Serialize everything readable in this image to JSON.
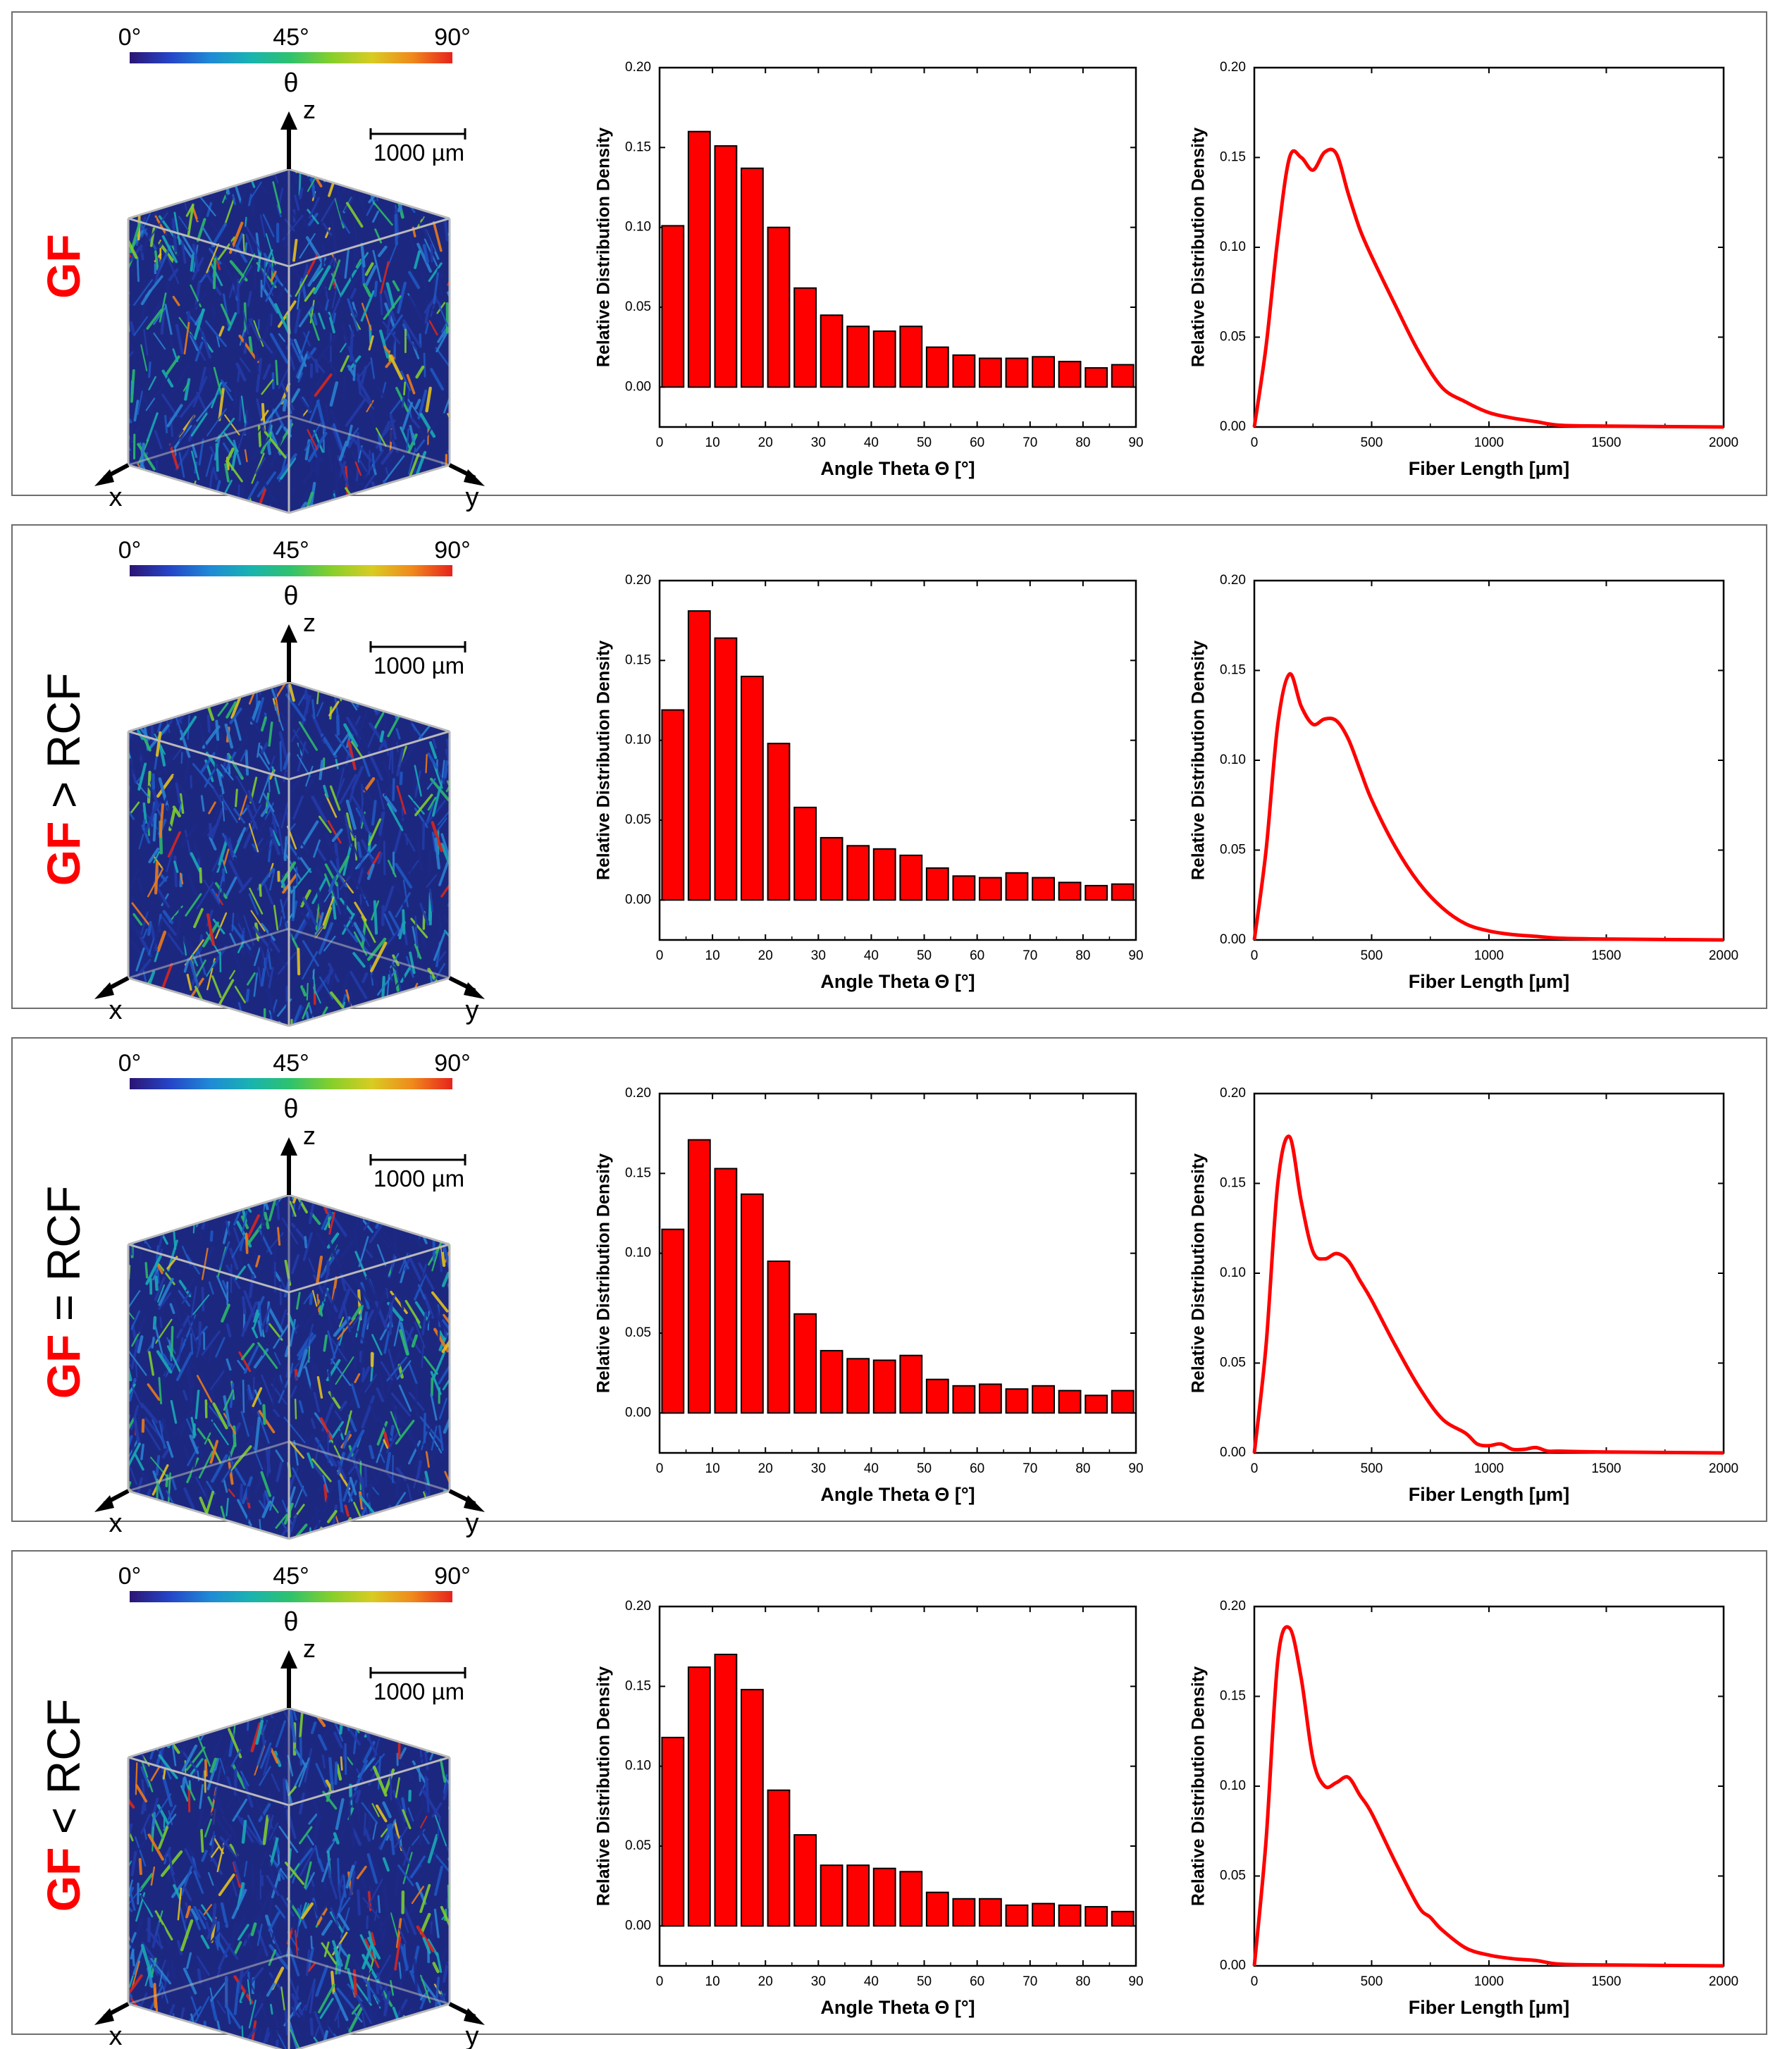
{
  "legend": {
    "tick_start": "0°",
    "tick_mid": "45°",
    "tick_end": "90°",
    "symbol": "θ",
    "colors": [
      "#2b1573",
      "#2545c8",
      "#1f8ad6",
      "#19b3b0",
      "#2fc26c",
      "#86cf2b",
      "#d8cc22",
      "#f08a1c",
      "#e6231c"
    ]
  },
  "volume": {
    "scale_bar_label": "1000 µm",
    "axis_x": "x",
    "axis_y": "y",
    "axis_z": "z",
    "fiber_colors": [
      "#1c2a88",
      "#223aa8",
      "#1f56c2",
      "#2a7fd0",
      "#19a9b5",
      "#2cb86a",
      "#7dcc2e",
      "#e2c01f",
      "#ec7a1a",
      "#d8261e"
    ]
  },
  "panels": [
    {
      "label_part1": "GF",
      "label_part2": "",
      "chart_data": [
        {
          "type": "bar",
          "title": "",
          "xlabel": "Angle Theta Θ [°]",
          "ylabel": "Relative Distribution Density",
          "xlim": [
            0,
            90
          ],
          "ylim": [
            -0.025,
            0.2
          ],
          "xticks": [
            "0",
            "10",
            "20",
            "30",
            "40",
            "50",
            "60",
            "70",
            "80",
            "90"
          ],
          "yticks": [
            "0.00",
            "0.05",
            "0.10",
            "0.15",
            "0.20"
          ],
          "bar_centers": [
            2.5,
            7.5,
            12.5,
            17.5,
            22.5,
            27.5,
            32.5,
            37.5,
            42.5,
            47.5,
            52.5,
            57.5,
            62.5,
            67.5,
            72.5,
            77.5,
            82.5,
            87.5
          ],
          "values": [
            0.101,
            0.16,
            0.151,
            0.137,
            0.1,
            0.062,
            0.045,
            0.038,
            0.035,
            0.038,
            0.025,
            0.02,
            0.018,
            0.018,
            0.019,
            0.016,
            0.012,
            0.014
          ]
        },
        {
          "type": "line",
          "title": "",
          "xlabel": "Fiber Length [µm]",
          "ylabel": "Relative Distribution Density",
          "xlim": [
            0,
            2000
          ],
          "ylim": [
            0,
            0.2
          ],
          "xticks": [
            "0",
            "500",
            "1000",
            "1500",
            "2000"
          ],
          "yticks": [
            "0.00",
            "0.05",
            "0.10",
            "0.15",
            "0.20"
          ],
          "x": [
            0,
            50,
            100,
            150,
            200,
            250,
            300,
            350,
            400,
            450,
            500,
            600,
            700,
            800,
            900,
            1000,
            1100,
            1200,
            1300,
            1500,
            2000
          ],
          "y": [
            0,
            0.045,
            0.105,
            0.15,
            0.15,
            0.143,
            0.153,
            0.152,
            0.13,
            0.11,
            0.095,
            0.068,
            0.042,
            0.022,
            0.014,
            0.008,
            0.005,
            0.003,
            0.001,
            0.0005,
            0
          ]
        }
      ]
    },
    {
      "label_part1": "GF",
      "label_part2": " > RCF",
      "chart_data": [
        {
          "type": "bar",
          "title": "",
          "xlabel": "Angle Theta Θ [°]",
          "ylabel": "Relative Distribution Density",
          "xlim": [
            0,
            90
          ],
          "ylim": [
            -0.025,
            0.2
          ],
          "xticks": [
            "0",
            "10",
            "20",
            "30",
            "40",
            "50",
            "60",
            "70",
            "80",
            "90"
          ],
          "yticks": [
            "0.00",
            "0.05",
            "0.10",
            "0.15",
            "0.20"
          ],
          "bar_centers": [
            2.5,
            7.5,
            12.5,
            17.5,
            22.5,
            27.5,
            32.5,
            37.5,
            42.5,
            47.5,
            52.5,
            57.5,
            62.5,
            67.5,
            72.5,
            77.5,
            82.5,
            87.5
          ],
          "values": [
            0.119,
            0.181,
            0.164,
            0.14,
            0.098,
            0.058,
            0.039,
            0.034,
            0.032,
            0.028,
            0.02,
            0.015,
            0.014,
            0.017,
            0.014,
            0.011,
            0.009,
            0.01
          ]
        },
        {
          "type": "line",
          "title": "",
          "xlabel": "Fiber Length [µm]",
          "ylabel": "Relative Distribution Density",
          "xlim": [
            0,
            2000
          ],
          "ylim": [
            0,
            0.2
          ],
          "xticks": [
            "0",
            "500",
            "1000",
            "1500",
            "2000"
          ],
          "yticks": [
            "0.00",
            "0.05",
            "0.10",
            "0.15",
            "0.20"
          ],
          "x": [
            0,
            50,
            100,
            150,
            200,
            250,
            300,
            350,
            400,
            450,
            500,
            600,
            700,
            800,
            900,
            1000,
            1100,
            1200,
            1300,
            1500,
            2000
          ],
          "y": [
            0,
            0.05,
            0.12,
            0.148,
            0.13,
            0.12,
            0.123,
            0.122,
            0.112,
            0.095,
            0.078,
            0.052,
            0.032,
            0.018,
            0.009,
            0.005,
            0.003,
            0.002,
            0.001,
            0.0005,
            0
          ]
        }
      ]
    },
    {
      "label_part1": "GF",
      "label_part2": " = RCF",
      "chart_data": [
        {
          "type": "bar",
          "title": "",
          "xlabel": "Angle Theta Θ [°]",
          "ylabel": "Relative Distribution Density",
          "xlim": [
            0,
            90
          ],
          "ylim": [
            -0.025,
            0.2
          ],
          "xticks": [
            "0",
            "10",
            "20",
            "30",
            "40",
            "50",
            "60",
            "70",
            "80",
            "90"
          ],
          "yticks": [
            "0.00",
            "0.05",
            "0.10",
            "0.15",
            "0.20"
          ],
          "bar_centers": [
            2.5,
            7.5,
            12.5,
            17.5,
            22.5,
            27.5,
            32.5,
            37.5,
            42.5,
            47.5,
            52.5,
            57.5,
            62.5,
            67.5,
            72.5,
            77.5,
            82.5,
            87.5
          ],
          "values": [
            0.115,
            0.171,
            0.153,
            0.137,
            0.095,
            0.062,
            0.039,
            0.034,
            0.033,
            0.036,
            0.021,
            0.017,
            0.018,
            0.015,
            0.017,
            0.014,
            0.011,
            0.014
          ]
        },
        {
          "type": "line",
          "title": "",
          "xlabel": "Fiber Length [µm]",
          "ylabel": "Relative Distribution Density",
          "xlim": [
            0,
            2000
          ],
          "ylim": [
            0,
            0.2
          ],
          "xticks": [
            "0",
            "500",
            "1000",
            "1500",
            "2000"
          ],
          "yticks": [
            "0.00",
            "0.05",
            "0.10",
            "0.15",
            "0.20"
          ],
          "x": [
            0,
            50,
            100,
            150,
            200,
            250,
            300,
            350,
            400,
            450,
            500,
            600,
            700,
            800,
            900,
            950,
            1000,
            1050,
            1100,
            1150,
            1200,
            1250,
            1300,
            1500,
            2000
          ],
          "y": [
            0,
            0.06,
            0.15,
            0.176,
            0.14,
            0.112,
            0.108,
            0.111,
            0.107,
            0.096,
            0.085,
            0.06,
            0.037,
            0.019,
            0.011,
            0.005,
            0.004,
            0.005,
            0.002,
            0.002,
            0.003,
            0.001,
            0.001,
            0.0005,
            0
          ]
        }
      ]
    },
    {
      "label_part1": "GF",
      "label_part2": " < RCF",
      "chart_data": [
        {
          "type": "bar",
          "title": "",
          "xlabel": "Angle Theta Θ [°]",
          "ylabel": "Relative Distribution Density",
          "xlim": [
            0,
            90
          ],
          "ylim": [
            -0.025,
            0.2
          ],
          "xticks": [
            "0",
            "10",
            "20",
            "30",
            "40",
            "50",
            "60",
            "70",
            "80",
            "90"
          ],
          "yticks": [
            "0.00",
            "0.05",
            "0.10",
            "0.15",
            "0.20"
          ],
          "bar_centers": [
            2.5,
            7.5,
            12.5,
            17.5,
            22.5,
            27.5,
            32.5,
            37.5,
            42.5,
            47.5,
            52.5,
            57.5,
            62.5,
            67.5,
            72.5,
            77.5,
            82.5,
            87.5
          ],
          "values": [
            0.118,
            0.162,
            0.17,
            0.148,
            0.085,
            0.057,
            0.038,
            0.038,
            0.036,
            0.034,
            0.021,
            0.017,
            0.017,
            0.013,
            0.014,
            0.013,
            0.012,
            0.009
          ]
        },
        {
          "type": "line",
          "title": "",
          "xlabel": "Fiber Length [µm]",
          "ylabel": "Relative Distribution Density",
          "xlim": [
            0,
            2000
          ],
          "ylim": [
            0,
            0.2
          ],
          "xticks": [
            "0",
            "500",
            "1000",
            "1500",
            "2000"
          ],
          "yticks": [
            "0.00",
            "0.05",
            "0.10",
            "0.15",
            "0.20"
          ],
          "x": [
            0,
            50,
            100,
            150,
            200,
            250,
            300,
            350,
            400,
            450,
            500,
            600,
            700,
            750,
            800,
            900,
            1000,
            1100,
            1200,
            1300,
            1500,
            2000
          ],
          "y": [
            0,
            0.07,
            0.17,
            0.188,
            0.16,
            0.115,
            0.1,
            0.102,
            0.105,
            0.095,
            0.085,
            0.058,
            0.033,
            0.027,
            0.02,
            0.01,
            0.006,
            0.004,
            0.003,
            0.001,
            0.0005,
            0
          ]
        }
      ]
    }
  ]
}
